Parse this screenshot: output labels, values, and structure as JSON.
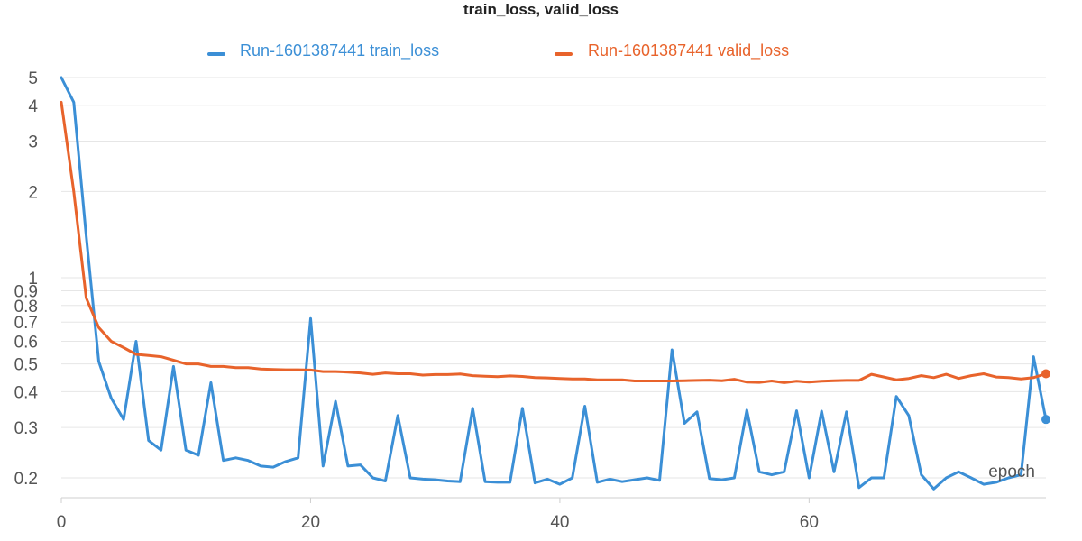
{
  "chart_data": {
    "type": "line",
    "title": "train_loss, valid_loss",
    "xlabel": "epoch",
    "ylabel": "",
    "yscale": "log",
    "xlim": [
      0,
      79
    ],
    "ylim": [
      0.18,
      5.1
    ],
    "xticks": [
      0,
      20,
      40,
      60
    ],
    "yticks": [
      {
        "value": 5,
        "label": "5"
      },
      {
        "value": 4,
        "label": "4"
      },
      {
        "value": 3,
        "label": "3"
      },
      {
        "value": 2,
        "label": "2"
      },
      {
        "value": 1,
        "label": "1"
      },
      {
        "value": 0.9,
        "label": "0.9"
      },
      {
        "value": 0.8,
        "label": "0.8"
      },
      {
        "value": 0.7,
        "label": "0.7"
      },
      {
        "value": 0.6,
        "label": "0.6"
      },
      {
        "value": 0.5,
        "label": "0.5"
      },
      {
        "value": 0.4,
        "label": "0.4"
      },
      {
        "value": 0.3,
        "label": "0.3"
      },
      {
        "value": 0.2,
        "label": "0.2"
      }
    ],
    "grid": true,
    "legend": "top-center",
    "series": [
      {
        "name": "Run-1601387441 train_loss",
        "color": "#3b8fd6",
        "x": [
          0,
          1,
          2,
          3,
          4,
          5,
          6,
          7,
          8,
          9,
          10,
          11,
          12,
          13,
          14,
          15,
          16,
          17,
          18,
          19,
          20,
          21,
          22,
          23,
          24,
          25,
          26,
          27,
          28,
          29,
          30,
          31,
          32,
          33,
          34,
          35,
          36,
          37,
          38,
          39,
          40,
          41,
          42,
          43,
          44,
          45,
          46,
          47,
          48,
          49,
          50,
          51,
          52,
          53,
          54,
          55,
          56,
          57,
          58,
          59,
          60,
          61,
          62,
          63,
          64,
          65,
          66,
          67,
          68,
          69,
          70,
          71,
          72,
          73,
          74,
          75,
          76,
          77,
          78,
          79
        ],
        "values": [
          5.0,
          4.1,
          1.4,
          0.51,
          0.38,
          0.32,
          0.6,
          0.27,
          0.25,
          0.49,
          0.25,
          0.24,
          0.43,
          0.23,
          0.235,
          0.23,
          0.22,
          0.218,
          0.228,
          0.235,
          0.72,
          0.22,
          0.37,
          0.22,
          0.222,
          0.2,
          0.195,
          0.33,
          0.2,
          0.198,
          0.197,
          0.195,
          0.194,
          0.35,
          0.194,
          0.193,
          0.193,
          0.35,
          0.192,
          0.198,
          0.19,
          0.2,
          0.356,
          0.193,
          0.198,
          0.194,
          0.197,
          0.2,
          0.196,
          0.56,
          0.31,
          0.34,
          0.199,
          0.197,
          0.2,
          0.345,
          0.21,
          0.205,
          0.21,
          0.343,
          0.2,
          0.342,
          0.21,
          0.34,
          0.185,
          0.2,
          0.2,
          0.385,
          0.33,
          0.205,
          0.183,
          0.2,
          0.21,
          0.2,
          0.19,
          0.193,
          0.2,
          0.205,
          0.53,
          0.32
        ]
      },
      {
        "name": "Run-1601387441 valid_loss",
        "color": "#e8632b",
        "x": [
          0,
          1,
          2,
          3,
          4,
          5,
          6,
          7,
          8,
          9,
          10,
          11,
          12,
          13,
          14,
          15,
          16,
          17,
          18,
          19,
          20,
          21,
          22,
          23,
          24,
          25,
          26,
          27,
          28,
          29,
          30,
          31,
          32,
          33,
          34,
          35,
          36,
          37,
          38,
          39,
          40,
          41,
          42,
          43,
          44,
          45,
          46,
          47,
          48,
          49,
          50,
          51,
          52,
          53,
          54,
          55,
          56,
          57,
          58,
          59,
          60,
          61,
          62,
          63,
          64,
          65,
          66,
          67,
          68,
          69,
          70,
          71,
          72,
          73,
          74,
          75,
          76,
          77,
          78,
          79
        ],
        "values": [
          4.1,
          2.0,
          0.85,
          0.67,
          0.6,
          0.57,
          0.54,
          0.535,
          0.53,
          0.515,
          0.5,
          0.5,
          0.49,
          0.49,
          0.485,
          0.485,
          0.48,
          0.478,
          0.477,
          0.477,
          0.476,
          0.47,
          0.47,
          0.468,
          0.465,
          0.46,
          0.465,
          0.462,
          0.462,
          0.457,
          0.459,
          0.459,
          0.461,
          0.455,
          0.453,
          0.451,
          0.454,
          0.452,
          0.448,
          0.447,
          0.445,
          0.443,
          0.443,
          0.44,
          0.44,
          0.44,
          0.436,
          0.436,
          0.436,
          0.436,
          0.437,
          0.438,
          0.439,
          0.437,
          0.442,
          0.432,
          0.431,
          0.436,
          0.43,
          0.435,
          0.432,
          0.435,
          0.437,
          0.438,
          0.438,
          0.46,
          0.45,
          0.44,
          0.445,
          0.455,
          0.448,
          0.46,
          0.445,
          0.455,
          0.462,
          0.45,
          0.448,
          0.443,
          0.448,
          0.462
        ]
      }
    ]
  }
}
